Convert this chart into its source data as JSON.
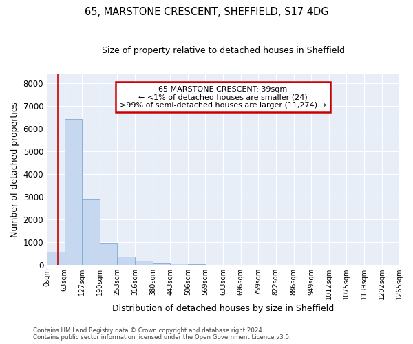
{
  "title": "65, MARSTONE CRESCENT, SHEFFIELD, S17 4DG",
  "subtitle": "Size of property relative to detached houses in Sheffield",
  "xlabel": "Distribution of detached houses by size in Sheffield",
  "ylabel": "Number of detached properties",
  "bar_color": "#c5d8f0",
  "bar_edge_color": "#7aabd4",
  "background_color": "#e8eef8",
  "bin_edges": [
    0,
    63,
    127,
    190,
    253,
    316,
    380,
    443,
    506,
    569,
    633,
    696,
    759,
    822,
    886,
    949,
    1012,
    1075,
    1139,
    1202,
    1265
  ],
  "bar_heights": [
    580,
    6420,
    2920,
    970,
    370,
    165,
    85,
    55,
    8,
    4,
    2,
    1,
    1,
    0,
    0,
    0,
    0,
    0,
    0,
    0
  ],
  "ylim": [
    0,
    8400
  ],
  "yticks": [
    0,
    1000,
    2000,
    3000,
    4000,
    5000,
    6000,
    7000,
    8000
  ],
  "property_size": 39,
  "red_line_color": "#cc0000",
  "annotation_line1": "65 MARSTONE CRESCENT: 39sqm",
  "annotation_line2": "← <1% of detached houses are smaller (24)",
  "annotation_line3": ">99% of semi-detached houses are larger (11,274) →",
  "annotation_box_color": "#cc0000",
  "footer_line1": "Contains HM Land Registry data © Crown copyright and database right 2024.",
  "footer_line2": "Contains public sector information licensed under the Open Government Licence v3.0.",
  "tick_labels": [
    "0sqm",
    "63sqm",
    "127sqm",
    "190sqm",
    "253sqm",
    "316sqm",
    "380sqm",
    "443sqm",
    "506sqm",
    "569sqm",
    "633sqm",
    "696sqm",
    "759sqm",
    "822sqm",
    "886sqm",
    "949sqm",
    "1012sqm",
    "1075sqm",
    "1139sqm",
    "1202sqm",
    "1265sqm"
  ],
  "title_fontsize": 10.5,
  "subtitle_fontsize": 9,
  "ylabel_fontsize": 9,
  "xlabel_fontsize": 9
}
